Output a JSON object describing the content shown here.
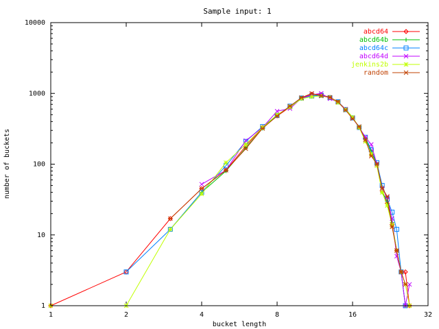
{
  "chart_data": {
    "type": "line",
    "title": "Sample input: 1",
    "xlabel": "bucket length",
    "ylabel": "number of buckets",
    "x_scale": "log2",
    "y_scale": "log10",
    "xlim": [
      1,
      32
    ],
    "ylim": [
      1,
      10000
    ],
    "x_ticks": [
      1,
      2,
      4,
      8,
      16,
      32
    ],
    "x_tick_labels": [
      "1",
      "2",
      "4",
      "8",
      "16",
      "32"
    ],
    "y_ticks": [
      1,
      10,
      100,
      1000,
      10000
    ],
    "y_tick_labels": [
      "1",
      "10",
      "100",
      "1000",
      "10000"
    ],
    "grid": false,
    "legend_position": "top-right",
    "series": [
      {
        "name": "abcd64",
        "color": "#ff0000",
        "marker": "diamond",
        "points": [
          [
            1,
            1
          ],
          [
            2,
            3
          ],
          [
            3,
            17
          ],
          [
            4,
            45
          ],
          [
            5,
            82
          ],
          [
            6,
            180
          ],
          [
            7,
            330
          ],
          [
            8,
            480
          ],
          [
            9,
            640
          ],
          [
            10,
            860
          ],
          [
            11,
            970
          ],
          [
            12,
            960
          ],
          [
            13,
            880
          ],
          [
            14,
            760
          ],
          [
            15,
            590
          ],
          [
            16,
            450
          ],
          [
            17,
            330
          ],
          [
            18,
            230
          ],
          [
            19,
            150
          ],
          [
            20,
            100
          ],
          [
            21,
            42
          ],
          [
            22,
            28
          ],
          [
            23,
            14
          ],
          [
            24,
            6
          ],
          [
            25,
            3
          ],
          [
            26,
            3
          ],
          [
            27,
            1
          ]
        ]
      },
      {
        "name": "abcd64b",
        "color": "#00c000",
        "marker": "plus",
        "points": [
          [
            3,
            12
          ],
          [
            4,
            40
          ],
          [
            5,
            80
          ],
          [
            6,
            170
          ],
          [
            7,
            320
          ],
          [
            8,
            490
          ],
          [
            9,
            650
          ],
          [
            10,
            850
          ],
          [
            11,
            930
          ],
          [
            12,
            950
          ],
          [
            13,
            870
          ],
          [
            14,
            760
          ],
          [
            15,
            600
          ],
          [
            16,
            460
          ],
          [
            17,
            330
          ],
          [
            18,
            230
          ],
          [
            19,
            150
          ],
          [
            20,
            100
          ],
          [
            21,
            40
          ],
          [
            22,
            30
          ],
          [
            23,
            15
          ],
          [
            24,
            6
          ],
          [
            25,
            3
          ],
          [
            26,
            1
          ]
        ]
      },
      {
        "name": "abcd64c",
        "color": "#0080ff",
        "marker": "square",
        "points": [
          [
            2,
            3
          ],
          [
            3,
            12
          ],
          [
            4,
            40
          ],
          [
            5,
            95
          ],
          [
            6,
            210
          ],
          [
            7,
            340
          ],
          [
            8,
            490
          ],
          [
            9,
            660
          ],
          [
            10,
            860
          ],
          [
            11,
            920
          ],
          [
            12,
            940
          ],
          [
            13,
            870
          ],
          [
            14,
            760
          ],
          [
            15,
            590
          ],
          [
            16,
            450
          ],
          [
            17,
            330
          ],
          [
            18,
            240
          ],
          [
            19,
            160
          ],
          [
            20,
            105
          ],
          [
            21,
            50
          ],
          [
            22,
            32
          ],
          [
            23,
            21
          ],
          [
            24,
            12
          ],
          [
            25,
            3
          ],
          [
            26,
            1
          ]
        ]
      },
      {
        "name": "abcd64d",
        "color": "#c000ff",
        "marker": "cross",
        "points": [
          [
            4,
            52
          ],
          [
            5,
            82
          ],
          [
            6,
            215
          ],
          [
            7,
            330
          ],
          [
            8,
            560
          ],
          [
            9,
            610
          ],
          [
            10,
            850
          ],
          [
            11,
            960
          ],
          [
            12,
            1000
          ],
          [
            13,
            840
          ],
          [
            14,
            750
          ],
          [
            15,
            600
          ],
          [
            16,
            450
          ],
          [
            17,
            330
          ],
          [
            18,
            240
          ],
          [
            19,
            190
          ],
          [
            20,
            100
          ],
          [
            21,
            45
          ],
          [
            22,
            34
          ],
          [
            23,
            17
          ],
          [
            24,
            5
          ],
          [
            25,
            3
          ],
          [
            26,
            1
          ],
          [
            27,
            2
          ]
        ]
      },
      {
        "name": "jenkins2b",
        "color": "#c0ff00",
        "marker": "star",
        "points": [
          [
            1,
            1
          ],
          [
            2,
            1
          ],
          [
            3,
            12
          ],
          [
            4,
            38
          ],
          [
            5,
            105
          ],
          [
            6,
            190
          ],
          [
            7,
            330
          ],
          [
            8,
            500
          ],
          [
            9,
            640
          ],
          [
            10,
            840
          ],
          [
            11,
            900
          ],
          [
            12,
            920
          ],
          [
            13,
            880
          ],
          [
            14,
            740
          ],
          [
            15,
            590
          ],
          [
            16,
            460
          ],
          [
            17,
            330
          ],
          [
            18,
            210
          ],
          [
            19,
            140
          ],
          [
            20,
            95
          ],
          [
            21,
            40
          ],
          [
            22,
            26
          ],
          [
            23,
            14
          ],
          [
            24,
            6
          ],
          [
            25,
            3
          ],
          [
            26,
            2
          ],
          [
            27,
            1
          ]
        ]
      },
      {
        "name": "random",
        "color": "#c04000",
        "marker": "asterisk",
        "points": [
          [
            3,
            17
          ],
          [
            4,
            45
          ],
          [
            5,
            82
          ],
          [
            6,
            165
          ],
          [
            7,
            320
          ],
          [
            8,
            480
          ],
          [
            9,
            660
          ],
          [
            10,
            870
          ],
          [
            11,
            1000
          ],
          [
            12,
            920
          ],
          [
            13,
            880
          ],
          [
            14,
            760
          ],
          [
            15,
            580
          ],
          [
            16,
            440
          ],
          [
            17,
            340
          ],
          [
            18,
            220
          ],
          [
            19,
            130
          ],
          [
            20,
            100
          ],
          [
            21,
            46
          ],
          [
            22,
            35
          ],
          [
            23,
            13
          ],
          [
            24,
            6
          ],
          [
            25,
            3
          ],
          [
            26,
            2
          ]
        ]
      }
    ]
  }
}
